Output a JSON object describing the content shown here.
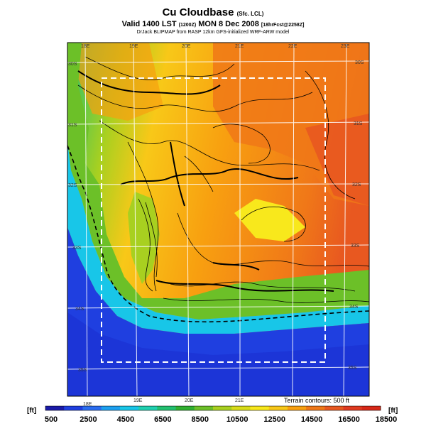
{
  "header": {
    "title": "Cu Cloudbase",
    "title_suffix": "(Sfc. LCL)",
    "valid_prefix": "Valid 1400 LST",
    "valid_time": "(1200Z)",
    "valid_date": "MON 8 Dec 2008",
    "forecast_note": "[18hrFcst@2258Z]",
    "credit": "DrJack BLIPMAP from RASP 12km GFS-initialized WRF-ARW model"
  },
  "map": {
    "longitude_labels_top": [
      "18E",
      "19E",
      "20E",
      "21E",
      "22E",
      "23E"
    ],
    "longitude_labels_bottom": [
      "18E",
      "19E",
      "20E",
      "21E"
    ],
    "latitude_labels_left": [
      "30S",
      "31S",
      "32S",
      "33S",
      "34S",
      "35S"
    ],
    "latitude_labels_right": [
      "30S",
      "31S",
      "32S",
      "33S",
      "34S",
      "35S"
    ],
    "terrain_note": "Terrain contours: 500 ft"
  },
  "colorbar": {
    "unit_left": "[ft]",
    "unit_right": "[ft]",
    "tick_labels": [
      "500",
      "2500",
      "4500",
      "6500",
      "8500",
      "10500",
      "12500",
      "14500",
      "16500",
      "18500"
    ],
    "colors": [
      "#1a1aa8",
      "#1f3fe0",
      "#2a6cf0",
      "#1ca0f0",
      "#18c6e8",
      "#20d0b0",
      "#22c070",
      "#30b030",
      "#6cc028",
      "#a8d020",
      "#d8dc18",
      "#f8e81c",
      "#f8c818",
      "#f8a010",
      "#f07818",
      "#e85820",
      "#e03a20",
      "#d82818"
    ]
  }
}
